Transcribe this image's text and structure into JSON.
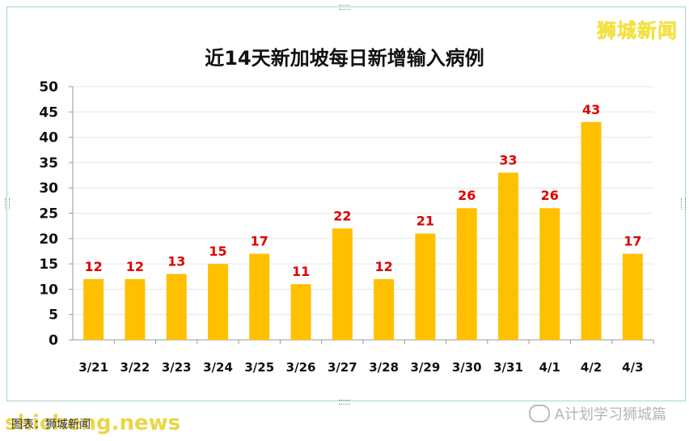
{
  "brand_text": "狮城新闻",
  "source_text": "图表：狮城新闻",
  "watermark_text": "shicheng.news",
  "wechat_text": "A计划学习狮城篇",
  "colors": {
    "bar": "#FFC000",
    "label": "#E00000",
    "grid": "#e6e6e6",
    "frame": "#9fd9cc"
  },
  "chart_data": {
    "type": "bar",
    "title": "近14天新加坡每日新增输入病例",
    "categories": [
      "3/21",
      "3/22",
      "3/23",
      "3/24",
      "3/25",
      "3/26",
      "3/27",
      "3/28",
      "3/29",
      "3/30",
      "3/31",
      "4/1",
      "4/2",
      "4/3"
    ],
    "values": [
      12,
      12,
      13,
      15,
      17,
      11,
      22,
      12,
      21,
      26,
      33,
      26,
      43,
      17
    ],
    "ylim": [
      0,
      50
    ],
    "yticks": [
      0,
      5,
      10,
      15,
      20,
      25,
      30,
      35,
      40,
      45,
      50
    ],
    "grid": true,
    "legend": "none"
  }
}
